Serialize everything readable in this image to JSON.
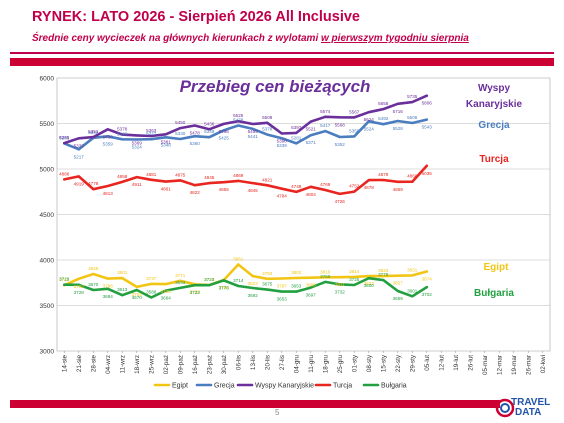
{
  "header": {
    "title": "RYNEK: LATO 2026 - Sierpień 2026 All Inclusive",
    "subtitle_pre": "Średnie ceny wycieczek na głównych kierunkach  z wylotami ",
    "subtitle_ul": "w pierwszym tygodniu sierpnia"
  },
  "page_number": "5",
  "logo": {
    "line1": "TRAVEL",
    "line2": "DATA"
  },
  "colors": {
    "egipt": "#f2c515",
    "grecja": "#4a7dbf",
    "wyspy": "#6a2f9a",
    "turcja": "#e8251f",
    "bulgaria": "#22a040",
    "accent": "#cc0033"
  },
  "chart_data": {
    "type": "line",
    "title": "Przebieg cen bieżących",
    "xlabel": "",
    "ylabel": "",
    "ylim": [
      3000,
      6000
    ],
    "yticks": [
      3000,
      3500,
      4000,
      4500,
      5000,
      5500,
      6000
    ],
    "grid": true,
    "legend_position": "bottom",
    "categories": [
      "14-sie",
      "21-sie",
      "28-sie",
      "04-wrz",
      "11-wrz",
      "18-wrz",
      "25-wrz",
      "02-paź",
      "09-paź",
      "16-paź",
      "23-paź",
      "30-paź",
      "06-lis",
      "13-lis",
      "20-lis",
      "27-lis",
      "04-gru",
      "11-gru",
      "18-gru",
      "25-gru",
      "01-sty",
      "08-sty",
      "15-sty",
      "22-sty",
      "29-sty",
      "05-lut",
      "12-lut",
      "19-lut",
      "26-lut",
      "05-mar",
      "12-mar",
      "19-mar",
      "26-mar",
      "02-kwi"
    ],
    "series": [
      {
        "name": "Egipt",
        "key": "egipt",
        "label_right": "Egipt",
        "values": [
          3723,
          3793,
          3846,
          3796,
          3801,
          3704,
          3737,
          3735,
          3771,
          3733,
          3725,
          3780,
          3951,
          3823,
          3793,
          3797,
          3802,
          3806,
          3810,
          3811,
          3814,
          3823,
          3823,
          3827,
          3831,
          3874,
          null,
          null,
          null,
          null,
          null,
          null,
          null,
          null
        ]
      },
      {
        "name": "Grecja",
        "key": "grecja",
        "label_right": "Grecja",
        "values": [
          5281,
          5217,
          5343,
          5359,
          5326,
          5324,
          5327,
          5348,
          5330,
          5360,
          5349,
          5425,
          5478,
          5441,
          5378,
          5339,
          5281,
          5371,
          5417,
          5352,
          5358,
          5524,
          5492,
          5528,
          5506,
          5543,
          null,
          null,
          null,
          null,
          null,
          null,
          null,
          null
        ]
      },
      {
        "name": "Wyspy Kanaryjskie",
        "key": "wyspy",
        "label_right": "Wyspy Kanaryjskie",
        "values": [
          5285,
          5337,
          5351,
          5436,
          5378,
          5369,
          5363,
          5381,
          5450,
          5478,
          5436,
          5496,
          5525,
          5495,
          5508,
          5390,
          5397,
          5521,
          5574,
          5568,
          5567,
          5624,
          5658,
          5716,
          5735,
          5806,
          null,
          null,
          null,
          null,
          null,
          null,
          null,
          null
        ]
      },
      {
        "name": "Turcja",
        "key": "turcja",
        "label_right": "Turcja",
        "values": [
          4886,
          4919,
          4778,
          4813,
          4858,
          4911,
          4881,
          4861,
          4875,
          4822,
          4845,
          4855,
          4869,
          4845,
          4821,
          4784,
          4748,
          4804,
          4769,
          4726,
          4752,
          4878,
          4879,
          4859,
          4860,
          5035,
          null,
          null,
          null,
          null,
          null,
          null,
          null,
          null
        ]
      },
      {
        "name": "Bułgaria",
        "key": "bulgaria",
        "label_right": "Bułgaria",
        "values": [
          3729,
          3728,
          3670,
          3684,
          3613,
          3670,
          3588,
          3664,
          3693,
          3723,
          3723,
          3776,
          3714,
          3692,
          3675,
          3653,
          3653,
          3697,
          3759,
          3732,
          3725,
          3800,
          3779,
          3659,
          3601,
          3702,
          null,
          null,
          null,
          null,
          null,
          null,
          null,
          null
        ]
      }
    ]
  }
}
